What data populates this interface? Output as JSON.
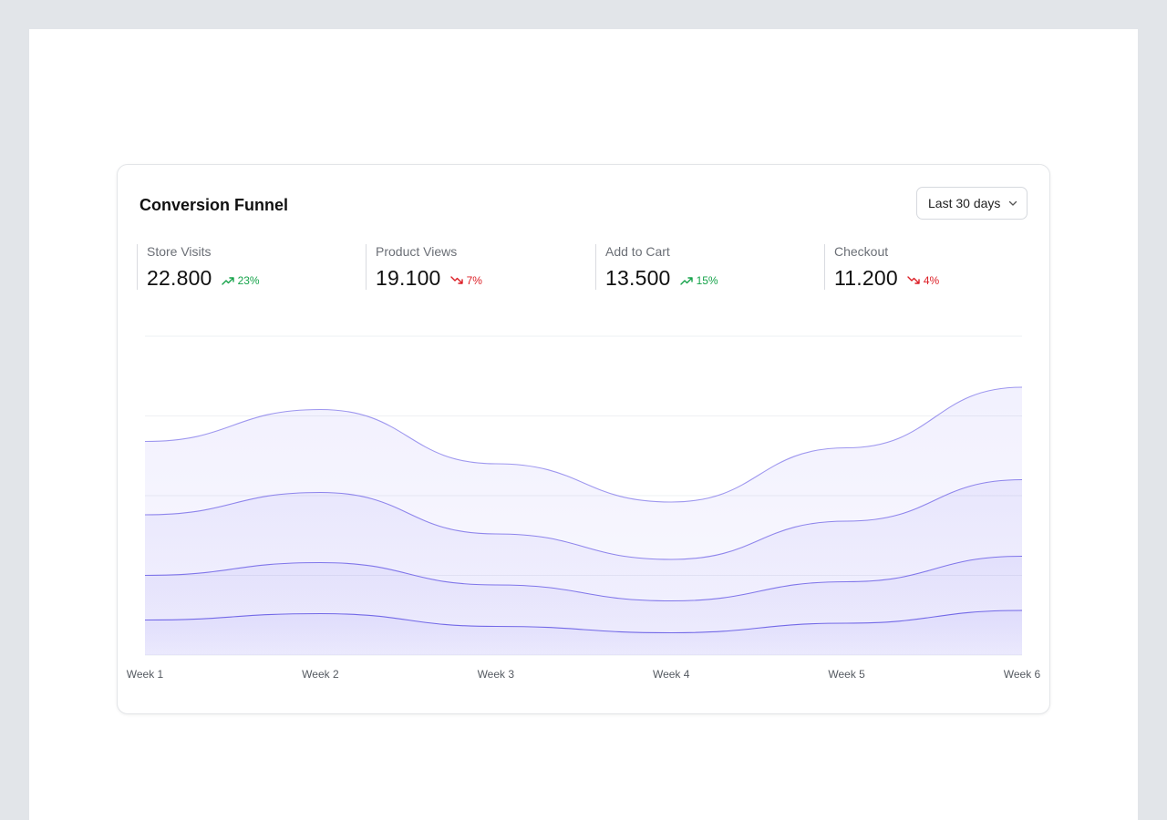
{
  "card": {
    "title": "Conversion Funnel",
    "range_label": "Last 30 days"
  },
  "kpis": [
    {
      "label": "Store Visits",
      "value": "22.800",
      "delta": "23%",
      "direction": "up"
    },
    {
      "label": "Product Views",
      "value": "19.100",
      "delta": "7%",
      "direction": "down"
    },
    {
      "label": "Add to Cart",
      "value": "13.500",
      "delta": "15%",
      "direction": "up"
    },
    {
      "label": "Checkout",
      "value": "11.200",
      "delta": "4%",
      "direction": "down"
    }
  ],
  "colors": {
    "accent_line": "#6d62e6",
    "area_fill": "#7b6ff2",
    "up": "#16a34a",
    "down": "#dc1f26"
  },
  "chart_data": {
    "type": "area",
    "x": [
      "Week 1",
      "Week 2",
      "Week 3",
      "Week 4",
      "Week 5",
      "Week 6"
    ],
    "ylim": [
      0,
      100
    ],
    "grid": true,
    "series": [
      {
        "values": [
          67,
          77,
          60,
          48,
          65,
          84
        ]
      },
      {
        "values": [
          44,
          51,
          38,
          30,
          42,
          55
        ]
      },
      {
        "values": [
          25,
          29,
          22,
          17,
          23,
          31
        ]
      },
      {
        "values": [
          11,
          13,
          9,
          7,
          10,
          14
        ]
      }
    ]
  }
}
